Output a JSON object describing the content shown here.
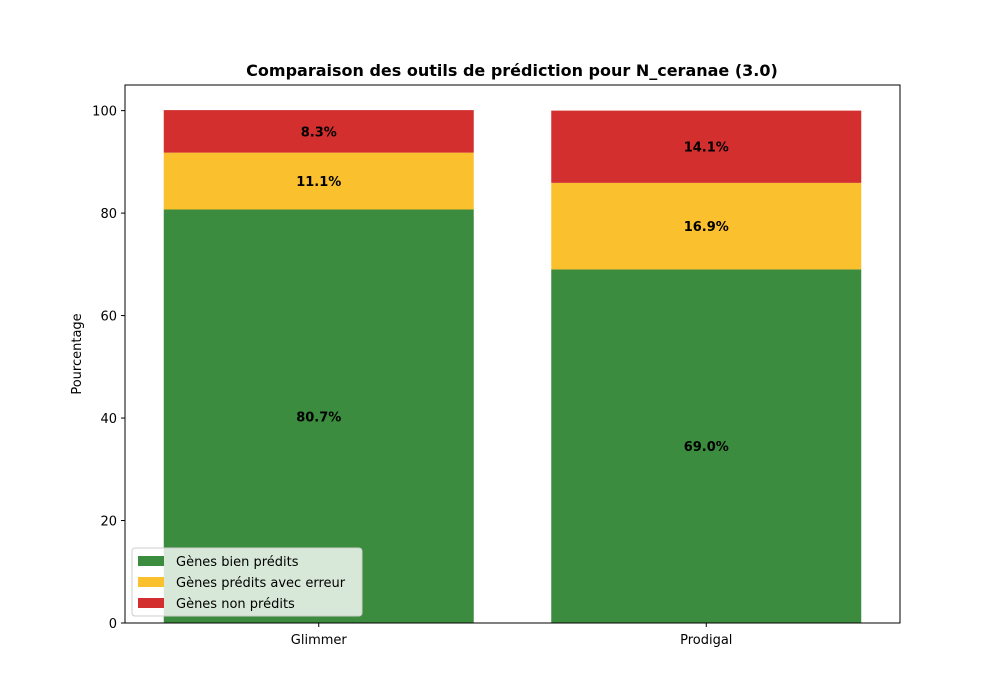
{
  "chart_data": {
    "type": "bar",
    "stacked": true,
    "title": "Comparaison des outils de prédiction pour N_ceranae (3.0)",
    "xlabel": "",
    "ylabel": "Pourcentage",
    "categories": [
      "Glimmer",
      "Prodigal"
    ],
    "ylim": [
      0,
      105
    ],
    "yticks": [
      0,
      20,
      40,
      60,
      80,
      100
    ],
    "grid": false,
    "legend_position": "lower-left",
    "series": [
      {
        "name": "Gènes bien prédits",
        "color": "#3b8c3e",
        "values": [
          80.7,
          69.0
        ],
        "labels": [
          "80.7%",
          "69.0%"
        ]
      },
      {
        "name": "Gènes prédits avec erreur",
        "color": "#fbc02d",
        "values": [
          11.1,
          16.9
        ],
        "labels": [
          "11.1%",
          "16.9%"
        ]
      },
      {
        "name": "Gènes non prédits",
        "color": "#d32f2f",
        "values": [
          8.3,
          14.1
        ],
        "labels": [
          "8.3%",
          "14.1%"
        ]
      }
    ]
  }
}
